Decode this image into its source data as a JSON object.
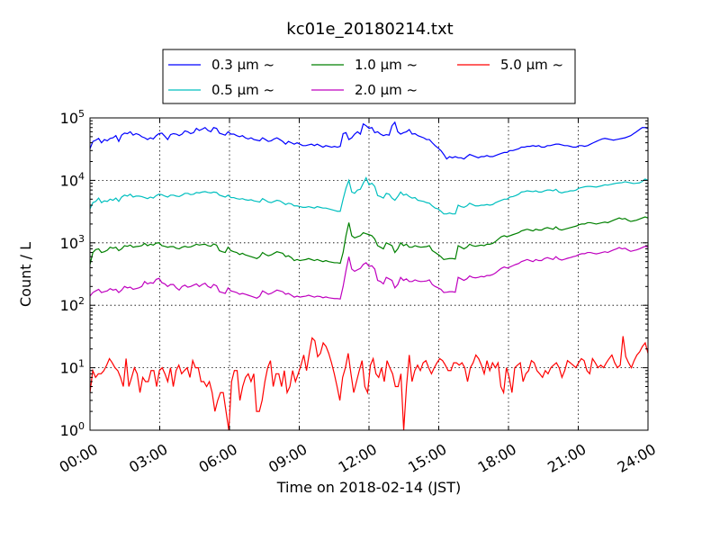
{
  "chart_data": {
    "type": "line",
    "title": "kc01e_20180214.txt",
    "xlabel": "Time on 2018-02-14 (JST)",
    "ylabel": "Count / L",
    "yscale": "log",
    "xlim": [
      "00:00",
      "24:00"
    ],
    "ylim": [
      1,
      100000
    ],
    "x_ticks": [
      "00:00",
      "03:00",
      "06:00",
      "09:00",
      "12:00",
      "15:00",
      "18:00",
      "21:00",
      "24:00"
    ],
    "y_ticks": [
      {
        "base": "10",
        "exp": "0"
      },
      {
        "base": "10",
        "exp": "1"
      },
      {
        "base": "10",
        "exp": "2"
      },
      {
        "base": "10",
        "exp": "3"
      },
      {
        "base": "10",
        "exp": "4"
      },
      {
        "base": "10",
        "exp": "5"
      }
    ],
    "grid": true,
    "legend_position": "top-center, above plot",
    "sample_interval_minutes": 10,
    "series": [
      {
        "name": "0.3 μm ~",
        "color": "#0000ff",
        "x_start": "00:00",
        "x_end": "24:00",
        "values": [
          32000,
          42000,
          44000,
          47000,
          40000,
          45000,
          43000,
          47000,
          48000,
          52000,
          42000,
          53000,
          57000,
          56000,
          60000,
          53000,
          56000,
          54000,
          50000,
          48000,
          45000,
          48000,
          46000,
          52000,
          56000,
          57000,
          51000,
          45000,
          54000,
          56000,
          55000,
          52000,
          55000,
          62000,
          60000,
          56000,
          58000,
          68000,
          63000,
          66000,
          70000,
          63000,
          60000,
          70000,
          68000,
          57000,
          55000,
          53000,
          60000,
          55000,
          55000,
          52000,
          50000,
          52000,
          48000,
          46000,
          48000,
          45000,
          44000,
          43000,
          48000,
          45000,
          42000,
          43000,
          46000,
          48000,
          45000,
          42000,
          38000,
          42000,
          40000,
          38000,
          40000,
          38000,
          36000,
          36000,
          37000,
          38000,
          36000,
          38000,
          36000,
          34000,
          36000,
          35000,
          34000,
          35000,
          34000,
          35000,
          56000,
          58000,
          45000,
          48000,
          55000,
          60000,
          55000,
          80000,
          75000,
          68000,
          70000,
          58000,
          60000,
          55000,
          52000,
          54000,
          53000,
          75000,
          85000,
          60000,
          55000,
          58000,
          60000,
          65000,
          55000,
          56000,
          52000,
          50000,
          48000,
          45000,
          45000,
          40000,
          36000,
          33000,
          30000,
          26000,
          22000,
          24000,
          23000,
          24000,
          23000,
          23000,
          22000,
          24000,
          26000,
          25000,
          24000,
          23000,
          24000,
          24000,
          25000,
          24000,
          24000,
          25000,
          26000,
          27000,
          28000,
          28000,
          30000,
          30000,
          31000,
          32000,
          34000,
          34000,
          35000,
          35000,
          36000,
          35000,
          36000,
          34000,
          34000,
          36000,
          36000,
          37000,
          38000,
          38000,
          37000,
          36000,
          36000,
          35000,
          34000,
          34000,
          36000,
          36000,
          35000,
          36000,
          38000,
          40000,
          42000,
          44000,
          46000,
          47000,
          46000,
          45000,
          44000,
          45000,
          46000,
          47000,
          48000,
          50000,
          52000,
          56000,
          60000,
          65000,
          70000,
          70000,
          68000
        ]
      },
      {
        "name": "0.5 μm ~",
        "color": "#00bfbf",
        "x_start": "00:00",
        "x_end": "24:00",
        "values": [
          3500,
          4400,
          4600,
          5200,
          4400,
          4700,
          4600,
          5000,
          4800,
          5200,
          4600,
          5400,
          5800,
          5600,
          6000,
          5400,
          5600,
          5600,
          5500,
          5300,
          5100,
          5400,
          5200,
          5700,
          6000,
          5900,
          5600,
          5400,
          5800,
          5800,
          5600,
          5500,
          5800,
          6200,
          6200,
          5900,
          6000,
          6400,
          6300,
          6500,
          6600,
          6400,
          6300,
          6500,
          6400,
          5800,
          5600,
          5400,
          5800,
          5300,
          5300,
          5100,
          5000,
          5100,
          4900,
          4800,
          4900,
          4700,
          4600,
          4500,
          5100,
          4800,
          4500,
          4400,
          4600,
          4800,
          4700,
          4400,
          4100,
          4300,
          4200,
          3900,
          3900,
          3800,
          3700,
          3700,
          3800,
          3700,
          3600,
          3800,
          3700,
          3600,
          3600,
          3500,
          3400,
          3300,
          3200,
          3200,
          5000,
          7500,
          10000,
          6500,
          6200,
          7000,
          7200,
          9000,
          11000,
          8500,
          9000,
          8000,
          5700,
          5500,
          5200,
          6200,
          6000,
          5200,
          4800,
          5500,
          6500,
          5800,
          6000,
          5500,
          5200,
          5300,
          4800,
          4700,
          4600,
          4400,
          4300,
          3900,
          3600,
          3500,
          3200,
          2900,
          2900,
          3000,
          2900,
          2900,
          4000,
          3800,
          3700,
          3900,
          4300,
          4100,
          3900,
          3900,
          4000,
          4000,
          4100,
          4000,
          4100,
          4400,
          4600,
          4800,
          5000,
          5000,
          5400,
          5500,
          5700,
          6000,
          6500,
          6600,
          6800,
          6700,
          6600,
          6800,
          6500,
          6500,
          6800,
          7000,
          7000,
          6800,
          7200,
          6500,
          6300,
          6500,
          6600,
          6800,
          6800,
          7000,
          7500,
          7700,
          7900,
          8000,
          8000,
          7900,
          7800,
          8000,
          8200,
          8500,
          8400,
          8600,
          8800,
          9000,
          9100,
          9200,
          9500,
          9300,
          9100,
          8900,
          9000,
          9100,
          9600,
          10500,
          10000
        ]
      },
      {
        "name": "1.0 μm ~",
        "color": "#008000",
        "x_start": "00:00",
        "x_end": "24:00",
        "values": [
          450,
          700,
          780,
          800,
          700,
          720,
          760,
          850,
          820,
          850,
          750,
          800,
          900,
          880,
          920,
          850,
          870,
          880,
          900,
          980,
          900,
          950,
          920,
          990,
          1000,
          900,
          880,
          850,
          870,
          870,
          820,
          800,
          850,
          880,
          850,
          860,
          900,
          950,
          920,
          940,
          950,
          900,
          880,
          960,
          920,
          750,
          720,
          700,
          850,
          750,
          720,
          700,
          650,
          680,
          640,
          620,
          600,
          580,
          560,
          600,
          700,
          650,
          620,
          640,
          680,
          720,
          700,
          680,
          600,
          620,
          580,
          520,
          540,
          520,
          530,
          540,
          560,
          540,
          520,
          540,
          520,
          500,
          520,
          500,
          490,
          480,
          480,
          470,
          700,
          1300,
          2100,
          1300,
          1200,
          1250,
          1300,
          1450,
          1400,
          1350,
          1300,
          1150,
          900,
          850,
          800,
          1000,
          950,
          900,
          700,
          800,
          1000,
          900,
          950,
          850,
          850,
          900,
          870,
          850,
          860,
          870,
          900,
          750,
          700,
          650,
          600,
          540,
          550,
          560,
          560,
          550,
          900,
          850,
          800,
          850,
          950,
          900,
          880,
          900,
          920,
          900,
          950,
          950,
          980,
          1050,
          1150,
          1250,
          1300,
          1250,
          1300,
          1350,
          1400,
          1450,
          1550,
          1600,
          1650,
          1600,
          1550,
          1650,
          1600,
          1600,
          1700,
          1750,
          1700,
          1650,
          1800,
          1650,
          1600,
          1650,
          1700,
          1750,
          1800,
          1850,
          1950,
          2000,
          2000,
          2100,
          2100,
          2050,
          2000,
          2050,
          2100,
          2150,
          2100,
          2200,
          2300,
          2400,
          2500,
          2400,
          2450,
          2300,
          2200,
          2250,
          2300,
          2400,
          2500,
          2600,
          2500
        ]
      },
      {
        "name": "2.0 μm ~",
        "color": "#bf00bf",
        "x_start": "00:00",
        "x_end": "24:00",
        "values": [
          140,
          160,
          170,
          180,
          160,
          165,
          170,
          185,
          175,
          180,
          160,
          175,
          200,
          190,
          195,
          180,
          185,
          190,
          200,
          240,
          220,
          230,
          225,
          260,
          270,
          230,
          220,
          200,
          215,
          215,
          190,
          175,
          200,
          210,
          195,
          200,
          210,
          220,
          200,
          215,
          225,
          200,
          190,
          215,
          205,
          165,
          160,
          155,
          190,
          170,
          165,
          160,
          150,
          155,
          150,
          145,
          140,
          135,
          130,
          140,
          170,
          160,
          150,
          155,
          165,
          175,
          170,
          165,
          150,
          155,
          145,
          135,
          140,
          135,
          138,
          140,
          145,
          140,
          135,
          140,
          138,
          132,
          136,
          132,
          130,
          128,
          128,
          126,
          200,
          360,
          600,
          380,
          350,
          370,
          390,
          450,
          480,
          420,
          430,
          380,
          250,
          240,
          220,
          280,
          265,
          250,
          190,
          215,
          280,
          250,
          265,
          240,
          240,
          255,
          245,
          240,
          242,
          245,
          255,
          215,
          200,
          190,
          180,
          160,
          162,
          165,
          165,
          162,
          280,
          265,
          250,
          265,
          295,
          280,
          275,
          280,
          290,
          285,
          300,
          300,
          310,
          330,
          360,
          390,
          410,
          395,
          410,
          430,
          450,
          465,
          500,
          520,
          540,
          520,
          500,
          540,
          520,
          520,
          560,
          580,
          560,
          540,
          600,
          550,
          530,
          545,
          565,
          580,
          600,
          615,
          650,
          670,
          670,
          700,
          700,
          680,
          665,
          680,
          700,
          720,
          700,
          735,
          770,
          800,
          840,
          800,
          820,
          770,
          730,
          750,
          770,
          800,
          840,
          880,
          850
        ]
      },
      {
        "name": "5.0 μm ~",
        "color": "#ff0000",
        "x_start": "00:00",
        "x_end": "24:00",
        "values": [
          4,
          9,
          7,
          8,
          8,
          9,
          11,
          14,
          12,
          10,
          9,
          7,
          5,
          14,
          5,
          7,
          10,
          8,
          4,
          7,
          6,
          6,
          9,
          9,
          5,
          9,
          10,
          8,
          6,
          10,
          5,
          9,
          11,
          8,
          9,
          10,
          7,
          13,
          10,
          10,
          6,
          6,
          5,
          6,
          4,
          2,
          3,
          4,
          4,
          2,
          1,
          6,
          9,
          9,
          3,
          5,
          7,
          8,
          6,
          8,
          2,
          2,
          3,
          6,
          10,
          13,
          5,
          8,
          8,
          5,
          9,
          4,
          5,
          9,
          6,
          8,
          11,
          16,
          9,
          17,
          30,
          27,
          15,
          17,
          25,
          22,
          17,
          12,
          8,
          5,
          3,
          7,
          10,
          17,
          8,
          4,
          6,
          9,
          13,
          5,
          4,
          11,
          14,
          8,
          7,
          10,
          6,
          13,
          10,
          8,
          5,
          5,
          8,
          1,
          5,
          16,
          6,
          9,
          11,
          9,
          12,
          13,
          10,
          8,
          10,
          12,
          14,
          13,
          11,
          9,
          9,
          12,
          12,
          11,
          12,
          10,
          6,
          10,
          12,
          16,
          14,
          11,
          8,
          13,
          9,
          12,
          10,
          12,
          5,
          4,
          10,
          7,
          4,
          10,
          11,
          12,
          6,
          8,
          9,
          13,
          12,
          9,
          8,
          7,
          9,
          8,
          10,
          11,
          12,
          10,
          7,
          9,
          13,
          12,
          11,
          10,
          12,
          14,
          13,
          9,
          8,
          14,
          12,
          10,
          11,
          10,
          12,
          14,
          16,
          12,
          10,
          11,
          32,
          15,
          12,
          10,
          13,
          16,
          18,
          22,
          25,
          17
        ]
      }
    ]
  }
}
